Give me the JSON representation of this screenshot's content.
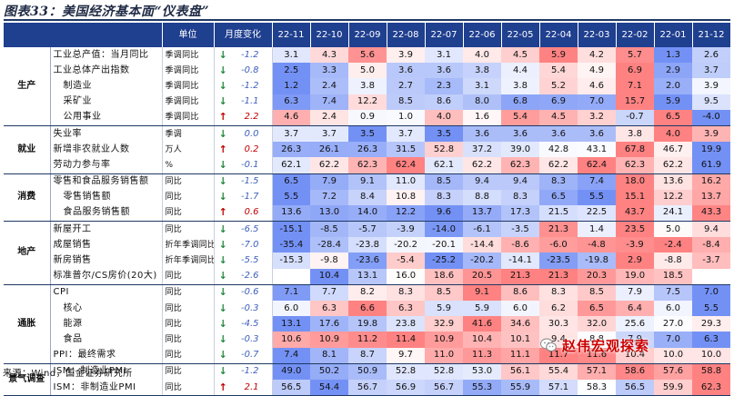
{
  "title": "图表33：美国经济基本面“仪表盘”",
  "source": "来源：Wind，国金证券研究所",
  "watermark": "赵伟宏观探索",
  "header": {
    "unit": "单位",
    "change": "月度变化",
    "months": [
      "22-11",
      "22-10",
      "22-09",
      "22-08",
      "22-07",
      "22-06",
      "22-05",
      "22-04",
      "22-03",
      "22-02",
      "22-01",
      "21-12"
    ]
  },
  "groups": [
    {
      "sector": "生产",
      "rows": [
        {
          "name": "工业总产值：当月同比",
          "indent": false,
          "unit": "季调同比",
          "dir": "down",
          "change": "-1.2",
          "values": [
            "3.1",
            "4.3",
            "5.6",
            "3.9",
            "3.1",
            "4.0",
            "4.5",
            "5.9",
            "4.2",
            "5.7",
            "1.3",
            "2.6"
          ]
        },
        {
          "name": "工业总体产出指数",
          "indent": false,
          "unit": "季调同比",
          "dir": "down",
          "change": "-0.8",
          "values": [
            "2.5",
            "3.3",
            "5.0",
            "3.6",
            "3.6",
            "3.8",
            "4.4",
            "5.4",
            "4.9",
            "6.9",
            "2.9",
            "3.7"
          ]
        },
        {
          "name": "制造业",
          "indent": true,
          "unit": "季调同比",
          "dir": "down",
          "change": "-1.2",
          "values": [
            "1.2",
            "2.4",
            "3.8",
            "2.7",
            "2.3",
            "3.1",
            "3.8",
            "5.2",
            "4.6",
            "7.1",
            "2.0",
            "3.9"
          ]
        },
        {
          "name": "采矿业",
          "indent": true,
          "unit": "季调同比",
          "dir": "down",
          "change": "-1.1",
          "values": [
            "6.3",
            "7.4",
            "12.2",
            "8.5",
            "8.6",
            "8.0",
            "6.8",
            "6.9",
            "7.0",
            "15.7",
            "5.9",
            "9.5"
          ]
        },
        {
          "name": "公用事业",
          "indent": true,
          "unit": "季调同比",
          "dir": "up",
          "change": "2.2",
          "values": [
            "4.6",
            "2.4",
            "0.9",
            "1.0",
            "4.0",
            "1.6",
            "5.4",
            "4.5",
            "3.2",
            "-0.7",
            "6.5",
            "-4.0"
          ]
        }
      ]
    },
    {
      "sector": "就业",
      "rows": [
        {
          "name": "失业率",
          "indent": false,
          "unit": "季调",
          "dir": "down",
          "change": "0.0",
          "values": [
            "3.7",
            "3.7",
            "3.5",
            "3.7",
            "3.5",
            "3.6",
            "3.6",
            "3.6",
            "3.6",
            "3.8",
            "4.0",
            "3.9"
          ]
        },
        {
          "name": "新增非农就业人数",
          "indent": false,
          "unit": "万人",
          "dir": "up",
          "change": "0.2",
          "values": [
            "26.3",
            "26.1",
            "26.3",
            "31.5",
            "52.8",
            "37.2",
            "39.0",
            "42.8",
            "43.1",
            "67.8",
            "46.7",
            "19.9"
          ]
        },
        {
          "name": "劳动力参与率",
          "indent": false,
          "unit": "%",
          "dir": "down",
          "change": "-0.1",
          "values": [
            "62.1",
            "62.2",
            "62.3",
            "62.4",
            "62.1",
            "62.2",
            "62.3",
            "62.2",
            "62.4",
            "62.3",
            "62.2",
            "61.9"
          ]
        }
      ]
    },
    {
      "sector": "消费",
      "rows": [
        {
          "name": "零售和食品服务销售额",
          "indent": false,
          "unit": "同比",
          "dir": "down",
          "change": "-1.5",
          "values": [
            "6.5",
            "7.9",
            "9.1",
            "11.0",
            "8.5",
            "9.4",
            "9.4",
            "8.3",
            "7.4",
            "18.0",
            "13.6",
            "16.2"
          ]
        },
        {
          "name": "零售销售额",
          "indent": true,
          "unit": "同比",
          "dir": "down",
          "change": "-1.7",
          "values": [
            "5.5",
            "7.2",
            "8.4",
            "10.8",
            "8.3",
            "8.8",
            "8.3",
            "6.5",
            "5.5",
            "15.1",
            "12.2",
            "13.7"
          ]
        },
        {
          "name": "食品服务销售额",
          "indent": true,
          "unit": "同比",
          "dir": "up",
          "change": "0.6",
          "values": [
            "13.6",
            "13.0",
            "14.0",
            "12.2",
            "9.6",
            "13.7",
            "17.3",
            "21.5",
            "22.5",
            "43.7",
            "24.1",
            "43.3"
          ]
        }
      ]
    },
    {
      "sector": "地产",
      "rows": [
        {
          "name": "新屋开工",
          "indent": false,
          "unit": "同比",
          "dir": "down",
          "change": "-6.5",
          "values": [
            "-15.1",
            "-8.5",
            "-5.7",
            "-3.9",
            "-14.0",
            "-6.1",
            "-3.5",
            "21.3",
            "1.4",
            "23.5",
            "5.0",
            "9.4"
          ]
        },
        {
          "name": "成屋销售",
          "indent": false,
          "unit": "折年季调同比",
          "dir": "down",
          "change": "-7.0",
          "values": [
            "-35.4",
            "-28.4",
            "-23.8",
            "-20.2",
            "-20.1",
            "-14.4",
            "-8.6",
            "-6.0",
            "-4.8",
            "-3.9",
            "-2.4",
            "-8.4"
          ]
        },
        {
          "name": "新房销售",
          "indent": false,
          "unit": "折年季调同比",
          "dir": "down",
          "change": "-5.5",
          "values": [
            "-15.3",
            "-9.8",
            "-23.6",
            "-5.4",
            "-25.2",
            "-20.2",
            "-14.1",
            "-23.5",
            "-19.8",
            "2.9",
            "-8.8",
            "-3.7"
          ]
        },
        {
          "name": "标准普尔/CS房价(20大)",
          "indent": false,
          "unit": "同比",
          "dir": "down",
          "change": "-2.6",
          "values": [
            "",
            "10.4",
            "13.1",
            "16.0",
            "18.6",
            "20.5",
            "21.3",
            "21.3",
            "20.3",
            "19.0",
            "18.5",
            ""
          ]
        }
      ]
    },
    {
      "sector": "通胀",
      "rows": [
        {
          "name": "CPI",
          "indent": false,
          "unit": "同比",
          "dir": "down",
          "change": "-0.6",
          "values": [
            "7.1",
            "7.7",
            "8.2",
            "8.3",
            "8.5",
            "9.1",
            "8.6",
            "8.3",
            "8.5",
            "7.9",
            "7.5",
            "7.0"
          ]
        },
        {
          "name": "核心",
          "indent": true,
          "unit": "同比",
          "dir": "down",
          "change": "-0.3",
          "values": [
            "6.0",
            "6.3",
            "6.6",
            "6.3",
            "5.9",
            "5.9",
            "6.0",
            "6.2",
            "6.5",
            "6.4",
            "6.0",
            "5.5"
          ]
        },
        {
          "name": "能源",
          "indent": true,
          "unit": "同比",
          "dir": "down",
          "change": "-4.5",
          "values": [
            "13.1",
            "17.6",
            "19.8",
            "23.8",
            "32.9",
            "41.6",
            "34.6",
            "30.3",
            "32.0",
            "25.6",
            "27.0",
            "29.3"
          ]
        },
        {
          "name": "食品",
          "indent": true,
          "unit": "同比",
          "dir": "down",
          "change": "-0.3",
          "values": [
            "10.6",
            "10.9",
            "11.2",
            "11.4",
            "10.9",
            "10.4",
            "10.1",
            "9.4",
            "8.8",
            "7.9",
            "7.0",
            "6.3"
          ]
        },
        {
          "name": "PPI：最终需求",
          "indent": false,
          "unit": "同比",
          "dir": "down",
          "change": "-0.7",
          "values": [
            "7.4",
            "8.1",
            "8.7",
            "9.7",
            "11.0",
            "11.3",
            "11.1",
            "11.7",
            "11.6",
            "10.4",
            "10.0",
            "10.0"
          ]
        }
      ]
    },
    {
      "sector": "景气调查",
      "rows": [
        {
          "name": "ISM：制造业PMI",
          "indent": false,
          "unit": "同比",
          "dir": "down",
          "change": "-1.2",
          "values": [
            "49.0",
            "50.2",
            "50.9",
            "52.8",
            "52.8",
            "53.0",
            "56.1",
            "55.4",
            "57.1",
            "58.6",
            "57.6",
            "58.8"
          ]
        },
        {
          "name": "ISM：非制造业PMI",
          "indent": false,
          "unit": "同比",
          "dir": "up",
          "change": "2.1",
          "values": [
            "56.5",
            "54.4",
            "56.7",
            "56.9",
            "56.7",
            "55.3",
            "55.9",
            "57.1",
            "58.3",
            "56.5",
            "59.9",
            "62.3"
          ]
        }
      ]
    }
  ],
  "colors": {
    "header_bg": "#1f3f8f",
    "up": "#c00000",
    "down": "#22883a",
    "red_strong": "#f08c8c",
    "blue_strong": "#6e8fd8"
  }
}
